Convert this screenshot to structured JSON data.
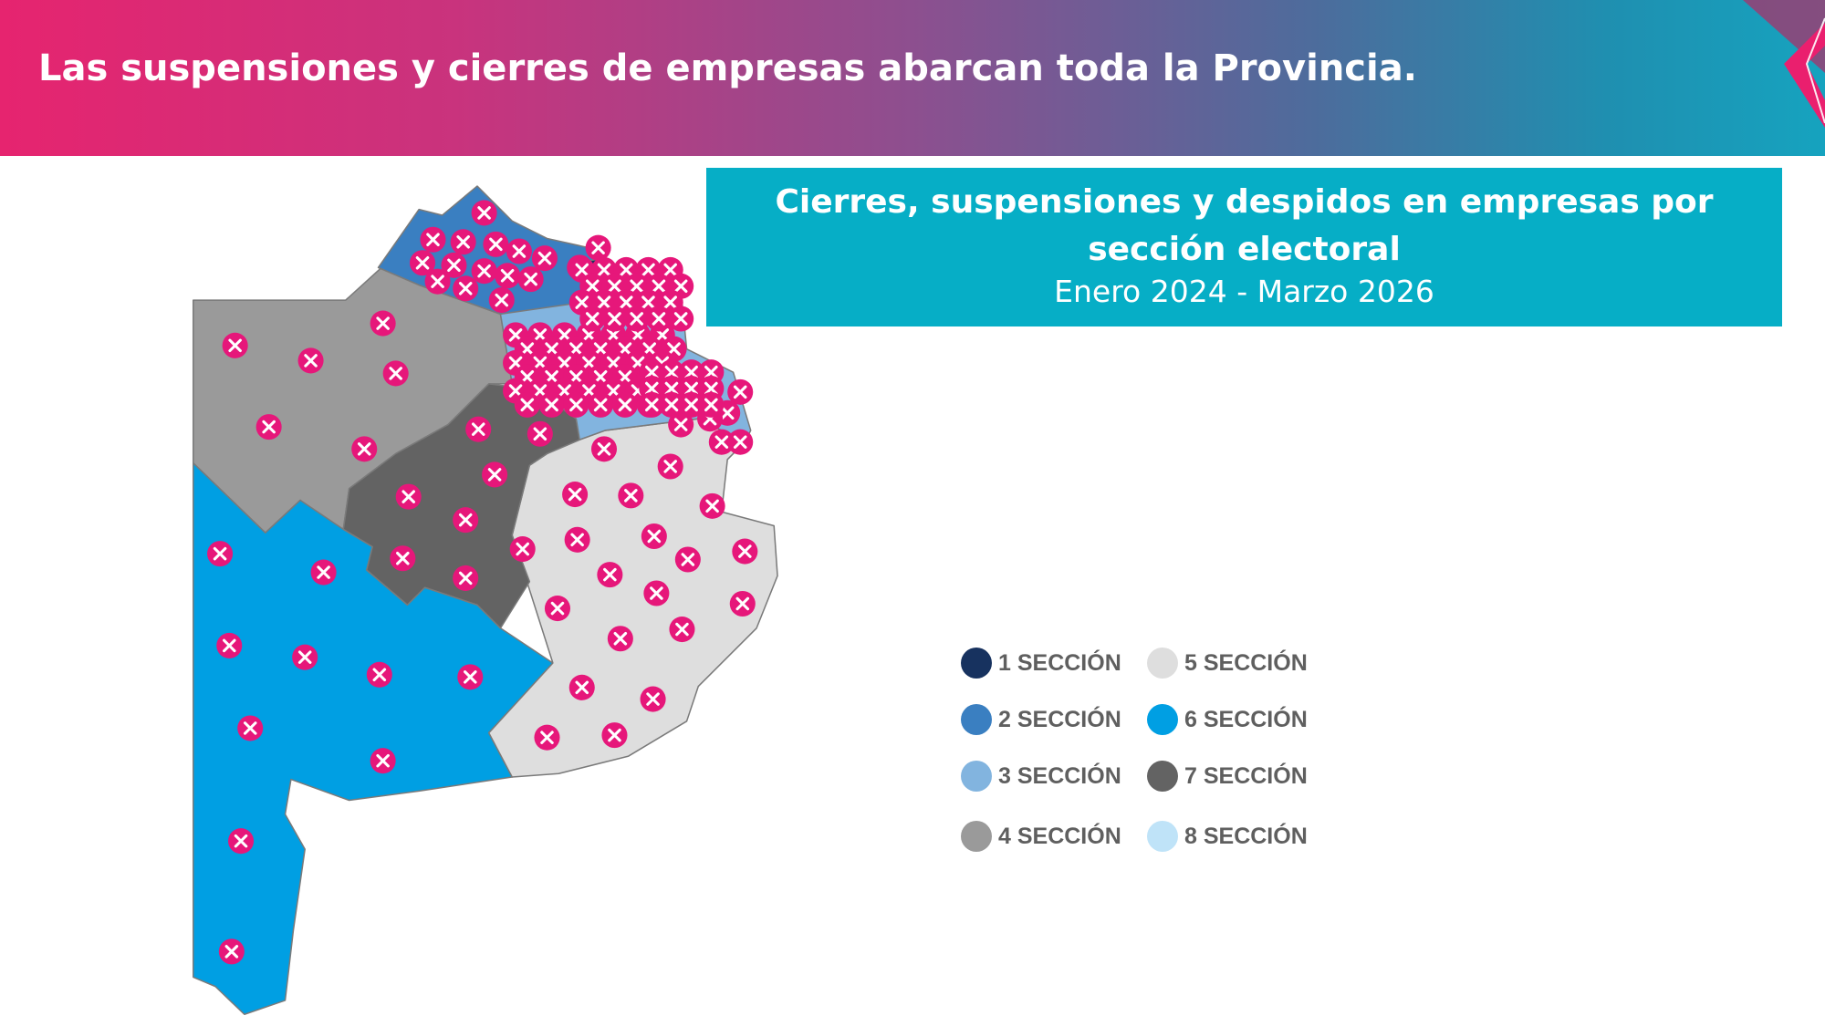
{
  "header": {
    "title": "Las suspensiones y cierres de empresas abarcan toda la Provincia."
  },
  "chart_box": {
    "title": "Cierres, suspensiones y despidos en empresas por sección electoral",
    "subtitle": "Enero 2024 - Marzo 2026"
  },
  "colors": {
    "accent_pink": "#e6177a",
    "title_box": "#06aec6",
    "marker": "#e6177a"
  },
  "marker_icon": "x-circle-icon",
  "legend": [
    {
      "label": "1 SECCIÓN",
      "color": "#17325f"
    },
    {
      "label": "2 SECCIÓN",
      "color": "#3a7fc1"
    },
    {
      "label": "3 SECCIÓN",
      "color": "#82b4df"
    },
    {
      "label": "4 SECCIÓN",
      "color": "#9a9a9a"
    },
    {
      "label": "5 SECCIÓN",
      "color": "#dedede"
    },
    {
      "label": "6 SECCIÓN",
      "color": "#009fe3"
    },
    {
      "label": "7 SECCIÓN",
      "color": "#636363"
    },
    {
      "label": "8 SECCIÓN",
      "color": "#bfe3f8"
    }
  ]
}
